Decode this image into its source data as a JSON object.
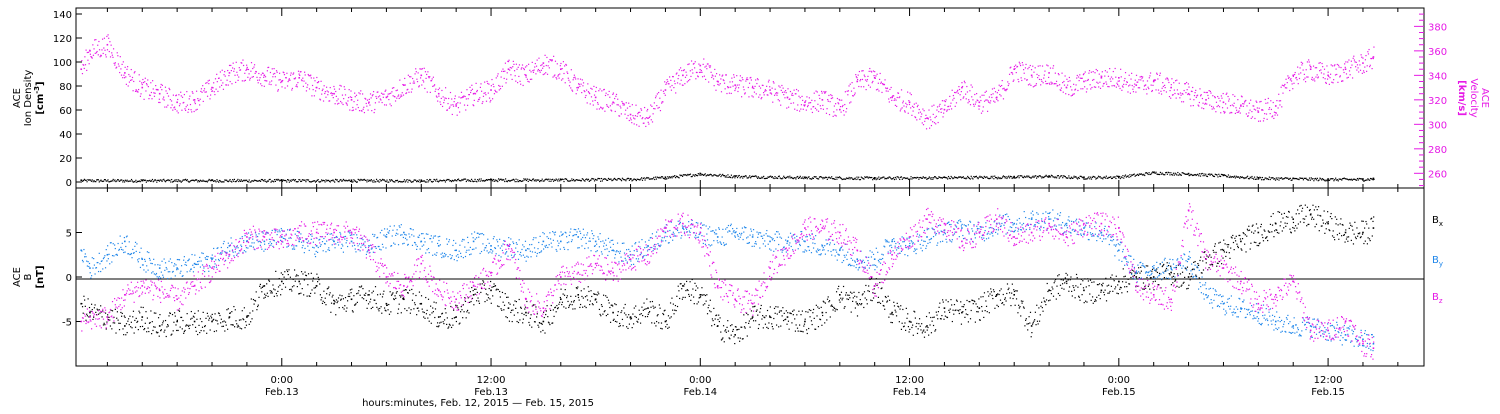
{
  "chart_data": [
    {
      "type": "scatter",
      "panel": "top",
      "x_unit": "hours since 2015-02-12 00:00 UT",
      "xlim": [
        12.2,
        89.5
      ],
      "left_axis": {
        "ylabel_lines": [
          "ACE",
          "Ion Density"
        ],
        "unit_base": "[cm",
        "unit_sup": "-3",
        "unit_tail": "]",
        "ylim": [
          -5,
          145
        ],
        "ticks": [
          0,
          20,
          40,
          60,
          80,
          100,
          120,
          140
        ],
        "color": "#000000"
      },
      "right_axis": {
        "ylabel_lines": [
          "ACE",
          "Velocity"
        ],
        "unit": "[km/s]",
        "ylim": [
          248,
          395
        ],
        "ticks": [
          260,
          280,
          300,
          320,
          340,
          360,
          380
        ],
        "color": "#e619e6"
      },
      "series": [
        {
          "name": "Ion Density",
          "axis": "left",
          "color": "#000000",
          "x": [
            12.5,
            16,
            20,
            24,
            28,
            32,
            36,
            40,
            44,
            46,
            48,
            50,
            54,
            58,
            62,
            66,
            68,
            70,
            72,
            74,
            76,
            78,
            80,
            82,
            84,
            86,
            86.6
          ],
          "y": [
            1.5,
            1.5,
            1.5,
            1.5,
            1.5,
            1.5,
            2,
            2,
            2.5,
            4,
            7,
            5,
            4,
            3.5,
            4,
            4.5,
            5,
            4,
            4.5,
            8,
            7,
            5.5,
            3.5,
            3,
            2.5,
            2.5,
            3
          ]
        },
        {
          "name": "Velocity",
          "axis": "right",
          "color": "#e619e6",
          "x": [
            12.5,
            13,
            14,
            15,
            16,
            17,
            18,
            19,
            20,
            21,
            22,
            23,
            24,
            25,
            26,
            27,
            28,
            29,
            30,
            31,
            32,
            33,
            34,
            35,
            36,
            37,
            38,
            39,
            40,
            41,
            42,
            43,
            44,
            45,
            46,
            47,
            48,
            49,
            50,
            51,
            52,
            53,
            54,
            55,
            56,
            57,
            58,
            59,
            60,
            61,
            62,
            63,
            64,
            65,
            66,
            67,
            68,
            69,
            70,
            71,
            72,
            73,
            74,
            75,
            76,
            77,
            78,
            79,
            80,
            81,
            82,
            83,
            84,
            85,
            86,
            86.6
          ],
          "y": [
            345,
            360,
            365,
            342,
            330,
            325,
            318,
            320,
            330,
            342,
            345,
            340,
            335,
            338,
            330,
            325,
            320,
            318,
            322,
            332,
            340,
            325,
            315,
            325,
            328,
            345,
            340,
            350,
            345,
            330,
            322,
            318,
            308,
            305,
            328,
            340,
            348,
            335,
            332,
            330,
            328,
            322,
            318,
            320,
            312,
            335,
            338,
            322,
            318,
            305,
            312,
            330,
            318,
            322,
            345,
            340,
            342,
            330,
            335,
            338,
            338,
            332,
            335,
            330,
            325,
            320,
            318,
            315,
            310,
            315,
            340,
            345,
            340,
            345,
            350,
            355
          ]
        }
      ]
    },
    {
      "type": "scatter",
      "panel": "bottom",
      "x_unit": "hours since 2015-02-12 00:00 UT",
      "xlim": [
        12.2,
        89.5
      ],
      "ylabel_lines": [
        "ACE",
        "B"
      ],
      "unit": "[nT]",
      "ylim": [
        -10,
        10
      ],
      "ticks": [
        -5,
        0,
        5
      ],
      "zero_line": true,
      "series": [
        {
          "name": "Bx",
          "name_base": "B",
          "name_sub": "x",
          "color": "#000000",
          "x": [
            12.5,
            13,
            14,
            15,
            16,
            17,
            18,
            19,
            20,
            21,
            22,
            23,
            24,
            25,
            26,
            27,
            28,
            29,
            30,
            31,
            32,
            33,
            34,
            35,
            36,
            37,
            38,
            39,
            40,
            41,
            42,
            43,
            44,
            45,
            46,
            47,
            48,
            49,
            50,
            51,
            52,
            53,
            54,
            55,
            56,
            57,
            58,
            59,
            60,
            61,
            62,
            63,
            64,
            65,
            66,
            67,
            68,
            69,
            70,
            71,
            72,
            73,
            74,
            75,
            76,
            77,
            78,
            79,
            80,
            81,
            82,
            83,
            84,
            85,
            86,
            86.6
          ],
          "y": [
            -3,
            -4,
            -4.5,
            -5.5,
            -4.5,
            -5.5,
            -5,
            -5,
            -5,
            -4.5,
            -4.5,
            -1,
            -0.5,
            -0.5,
            -1,
            -3,
            -2.5,
            -2,
            -3,
            -2.5,
            -3,
            -4.5,
            -4.5,
            -2,
            -1.5,
            -3.5,
            -4,
            -5,
            -2.5,
            -2,
            -2.5,
            -4,
            -4.5,
            -3.5,
            -5,
            -1,
            -2,
            -5.5,
            -6.5,
            -4.5,
            -4.5,
            -4.5,
            -5,
            -4,
            -2,
            -3,
            -1,
            -4,
            -5,
            -5.5,
            -3.5,
            -4,
            -3.5,
            -2,
            -2,
            -5.5,
            -1.5,
            -0.5,
            -1.5,
            -1.5,
            -0.5,
            0,
            0,
            0.5,
            0,
            2,
            3,
            4,
            5,
            6,
            6.5,
            7,
            6,
            5,
            5,
            5.5
          ]
        },
        {
          "name": "By",
          "name_base": "B",
          "name_sub": "y",
          "color": "#1f86ea",
          "x": [
            12.5,
            13,
            14,
            15,
            16,
            17,
            18,
            19,
            20,
            21,
            22,
            23,
            24,
            25,
            26,
            27,
            28,
            29,
            30,
            31,
            32,
            33,
            34,
            35,
            36,
            37,
            38,
            39,
            40,
            41,
            42,
            43,
            44,
            45,
            46,
            47,
            48,
            49,
            50,
            51,
            52,
            53,
            54,
            55,
            56,
            57,
            58,
            59,
            60,
            61,
            62,
            63,
            64,
            65,
            66,
            67,
            68,
            69,
            70,
            71,
            72,
            73,
            74,
            75,
            76,
            77,
            78,
            79,
            80,
            81,
            82,
            83,
            84,
            85,
            86,
            86.6
          ],
          "y": [
            3,
            1,
            2.5,
            4,
            2,
            1,
            1,
            1.5,
            2,
            3.5,
            4,
            4,
            4.5,
            4,
            3.5,
            4,
            4,
            3.5,
            4.5,
            5,
            4,
            3.5,
            3,
            4,
            3.5,
            3.5,
            3,
            4,
            4,
            4.5,
            4,
            3,
            2.5,
            3.5,
            5,
            5.5,
            5,
            4.5,
            5,
            4.5,
            4,
            4,
            4,
            3.5,
            3,
            2,
            2,
            4,
            3.5,
            4.5,
            5,
            5.5,
            5,
            6,
            6,
            6.5,
            6.5,
            6,
            5.5,
            5,
            3,
            0.5,
            1,
            1,
            2,
            -2,
            -3,
            -3.5,
            -4,
            -5,
            -5.5,
            -5.5,
            -6,
            -6.5,
            -7,
            -7.5
          ]
        },
        {
          "name": "Bz",
          "name_base": "B",
          "name_sub": "z",
          "color": "#e619e6",
          "x": [
            12.5,
            13,
            14,
            15,
            16,
            17,
            18,
            19,
            20,
            21,
            22,
            23,
            24,
            25,
            26,
            27,
            28,
            29,
            30,
            31,
            32,
            33,
            34,
            35,
            36,
            37,
            38,
            39,
            40,
            41,
            42,
            43,
            44,
            45,
            46,
            47,
            48,
            49,
            50,
            51,
            52,
            53,
            54,
            55,
            56,
            57,
            58,
            59,
            60,
            61,
            62,
            63,
            64,
            65,
            66,
            67,
            68,
            69,
            70,
            71,
            72,
            73,
            74,
            75,
            76,
            77,
            78,
            79,
            80,
            81,
            82,
            83,
            84,
            85,
            86,
            86.6
          ],
          "y": [
            -5,
            -4.5,
            -4.5,
            -2,
            -1,
            -1.5,
            -2.5,
            -1,
            1,
            2.5,
            4.5,
            4.5,
            4,
            5,
            5,
            5,
            5,
            3,
            0,
            -1,
            1.5,
            -1.5,
            -2.5,
            -1,
            0.5,
            3.5,
            -2.5,
            -3.5,
            0,
            0.5,
            1.5,
            0.5,
            2,
            2.5,
            5.5,
            6,
            5,
            -1,
            -2.5,
            -3,
            1,
            3,
            5.5,
            5.5,
            5,
            3,
            -1,
            2.5,
            4.5,
            6.5,
            6,
            4,
            5,
            6.5,
            4.5,
            5,
            6,
            4.5,
            6,
            6,
            5.5,
            -1,
            -2,
            -2.5,
            7.5,
            2,
            1,
            -0.5,
            -3,
            -2,
            -0.5,
            -6,
            -6,
            -5,
            -7.5,
            -8
          ]
        }
      ]
    }
  ],
  "x_axis": {
    "ticks": [
      {
        "x": 24,
        "time": "0:00",
        "date": "Feb.13"
      },
      {
        "x": 36,
        "time": "12:00",
        "date": "Feb.13"
      },
      {
        "x": 48,
        "time": "0:00",
        "date": "Feb.14"
      },
      {
        "x": 60,
        "time": "12:00",
        "date": "Feb.14"
      },
      {
        "x": 72,
        "time": "0:00",
        "date": "Feb.15"
      },
      {
        "x": 84,
        "time": "12:00",
        "date": "Feb.15"
      }
    ],
    "xlabel": "hours:minutes, Feb. 12, 2015 — Feb. 15, 2015"
  }
}
